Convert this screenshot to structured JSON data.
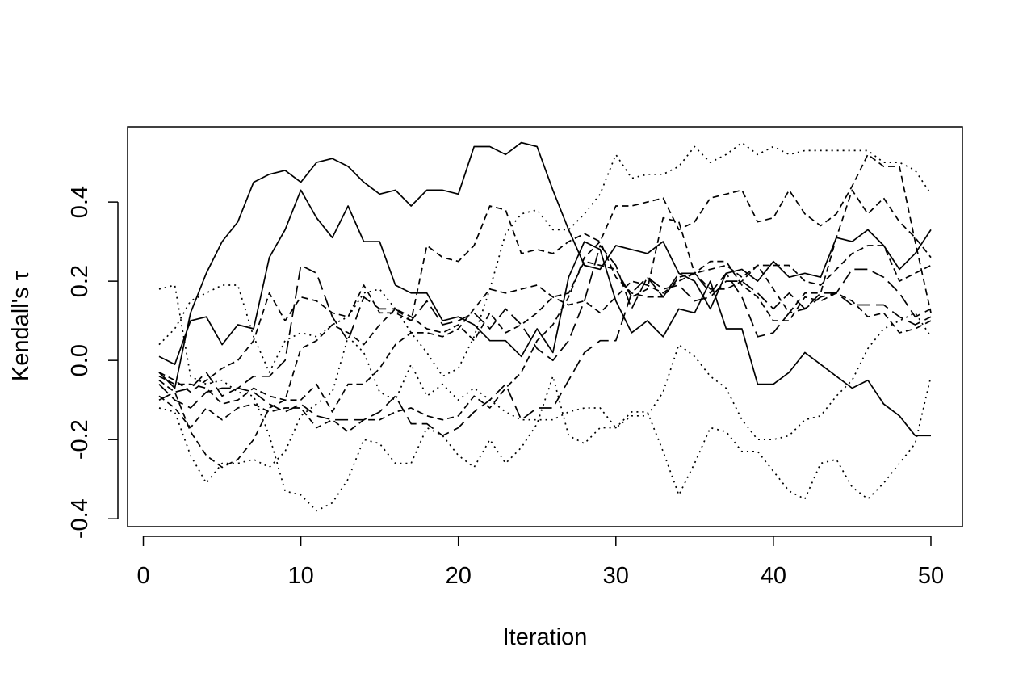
{
  "chart_data": {
    "type": "line",
    "title": "",
    "xlabel": "Iteration",
    "ylabel": "Kendall's τ",
    "xlim": [
      -1,
      52
    ],
    "ylim": [
      -0.42,
      0.59
    ],
    "xticks": [
      0,
      10,
      20,
      30,
      40,
      50
    ],
    "xtick_labels": [
      "0",
      "10",
      "20",
      "30",
      "40",
      "50"
    ],
    "yticks": [
      -0.4,
      -0.2,
      0.0,
      0.2,
      0.4
    ],
    "ytick_labels": [
      "-0.4",
      "-0.2",
      "0.0",
      "0.2",
      "0.4"
    ],
    "grid": false,
    "legend": "none",
    "line_color": "#000000",
    "x": [
      1,
      2,
      3,
      4,
      5,
      6,
      7,
      8,
      9,
      10,
      11,
      12,
      13,
      14,
      15,
      16,
      17,
      18,
      19,
      20,
      21,
      22,
      23,
      24,
      25,
      26,
      27,
      28,
      29,
      30,
      31,
      32,
      33,
      34,
      35,
      36,
      37,
      38,
      39,
      40,
      41,
      42,
      43,
      44,
      45,
      46,
      47,
      48,
      49,
      50
    ],
    "series": [
      {
        "dash": "solid",
        "values": [
          -0.03,
          -0.07,
          0.12,
          0.22,
          0.3,
          0.35,
          0.45,
          0.47,
          0.48,
          0.45,
          0.5,
          0.51,
          0.49,
          0.45,
          0.42,
          0.43,
          0.39,
          0.43,
          0.43,
          0.42,
          0.54,
          0.54,
          0.52,
          0.55,
          0.54,
          0.43,
          0.33,
          0.24,
          0.23,
          0.29,
          0.28,
          0.27,
          0.3,
          0.22,
          0.2,
          0.13,
          0.22,
          0.23,
          0.2,
          0.25,
          0.21,
          0.22,
          0.21,
          0.31,
          0.3,
          0.33,
          0.29,
          0.23,
          0.27,
          0.33
        ]
      },
      {
        "dash": "solid",
        "values": [
          0.01,
          -0.01,
          0.1,
          0.11,
          0.04,
          0.09,
          0.08,
          0.26,
          0.33,
          0.43,
          0.36,
          0.31,
          0.39,
          0.3,
          0.3,
          0.19,
          0.17,
          0.17,
          0.1,
          0.11,
          0.09,
          0.05,
          0.05,
          0.01,
          0.08,
          0.02,
          0.21,
          0.3,
          0.28,
          0.15,
          0.07,
          0.1,
          0.06,
          0.13,
          0.12,
          0.2,
          0.08,
          0.08,
          -0.06,
          -0.06,
          -0.03,
          0.02,
          -0.01,
          -0.04,
          -0.07,
          -0.05,
          -0.11,
          -0.14,
          -0.19,
          -0.19
        ]
      },
      {
        "dash": "dashed",
        "values": [
          -0.03,
          -0.05,
          -0.08,
          -0.05,
          -0.02,
          0.0,
          0.05,
          0.17,
          0.1,
          0.16,
          0.15,
          0.12,
          0.11,
          0.19,
          0.12,
          0.12,
          0.1,
          0.29,
          0.26,
          0.25,
          0.29,
          0.39,
          0.38,
          0.27,
          0.28,
          0.27,
          0.3,
          0.32,
          0.3,
          0.39,
          0.39,
          0.4,
          0.41,
          0.33,
          0.35,
          0.41,
          0.42,
          0.43,
          0.35,
          0.36,
          0.43,
          0.37,
          0.34,
          0.37,
          0.44,
          0.52,
          0.49,
          0.49,
          0.3,
          0.12
        ]
      },
      {
        "dash": "dashed",
        "values": [
          -0.05,
          -0.08,
          -0.18,
          -0.24,
          -0.27,
          -0.25,
          -0.2,
          -0.12,
          -0.1,
          0.03,
          0.05,
          0.09,
          0.07,
          0.04,
          0.09,
          0.13,
          0.11,
          0.08,
          0.07,
          0.09,
          0.05,
          0.12,
          0.07,
          0.09,
          0.12,
          0.16,
          0.17,
          0.25,
          0.24,
          0.23,
          0.16,
          0.18,
          0.36,
          0.35,
          0.22,
          0.18,
          0.18,
          0.2,
          0.24,
          0.18,
          0.12,
          0.17,
          0.17,
          0.31,
          0.43,
          0.37,
          0.41,
          0.35,
          0.31,
          0.26
        ]
      },
      {
        "dash": "dashed",
        "values": [
          -0.09,
          -0.12,
          -0.17,
          -0.12,
          -0.15,
          -0.12,
          -0.11,
          -0.13,
          -0.12,
          -0.12,
          -0.17,
          -0.15,
          -0.18,
          -0.15,
          -0.15,
          -0.13,
          -0.12,
          -0.14,
          -0.15,
          -0.14,
          -0.09,
          -0.12,
          -0.07,
          -0.03,
          0.05,
          0.09,
          0.16,
          0.26,
          0.3,
          0.21,
          0.17,
          0.16,
          0.16,
          0.21,
          0.22,
          0.25,
          0.25,
          0.19,
          0.16,
          0.1,
          0.1,
          0.16,
          0.15,
          0.17,
          0.15,
          0.11,
          0.12,
          0.07,
          0.08,
          0.1
        ]
      },
      {
        "dash": "dashed",
        "values": [
          -0.04,
          -0.06,
          -0.06,
          -0.07,
          -0.11,
          -0.1,
          -0.07,
          -0.09,
          -0.1,
          -0.1,
          -0.06,
          -0.13,
          -0.06,
          -0.06,
          -0.02,
          0.04,
          0.07,
          0.07,
          0.06,
          0.08,
          0.13,
          0.18,
          0.17,
          0.18,
          0.19,
          0.16,
          0.14,
          0.15,
          0.12,
          0.16,
          0.2,
          0.19,
          0.17,
          0.2,
          0.22,
          0.23,
          0.24,
          0.21,
          0.24,
          0.24,
          0.24,
          0.2,
          0.19,
          0.23,
          0.27,
          0.29,
          0.29,
          0.2,
          0.22,
          0.24
        ]
      },
      {
        "dash": "longdash",
        "values": [
          -0.1,
          -0.08,
          -0.07,
          -0.03,
          -0.09,
          -0.07,
          -0.04,
          -0.04,
          0.0,
          0.24,
          0.22,
          0.11,
          0.05,
          0.16,
          0.13,
          0.13,
          0.1,
          0.15,
          0.09,
          0.1,
          0.12,
          0.08,
          0.13,
          0.09,
          0.03,
          0.0,
          0.05,
          0.15,
          0.29,
          0.24,
          0.13,
          0.21,
          0.18,
          0.19,
          0.15,
          0.16,
          0.2,
          0.2,
          0.17,
          0.13,
          0.17,
          0.13,
          0.17,
          0.17,
          0.14,
          0.14,
          0.14,
          0.11,
          0.09,
          0.11
        ]
      },
      {
        "dash": "longdash",
        "values": [
          -0.06,
          -0.1,
          -0.12,
          -0.08,
          -0.07,
          -0.07,
          -0.08,
          -0.11,
          -0.13,
          -0.11,
          -0.14,
          -0.15,
          -0.15,
          -0.15,
          -0.13,
          -0.09,
          -0.16,
          -0.16,
          -0.19,
          -0.17,
          -0.13,
          -0.1,
          -0.06,
          -0.15,
          -0.12,
          -0.12,
          -0.05,
          0.02,
          0.05,
          0.05,
          0.17,
          0.21,
          0.16,
          0.22,
          0.22,
          0.17,
          0.22,
          0.16,
          0.06,
          0.07,
          0.12,
          0.13,
          0.16,
          0.17,
          0.23,
          0.23,
          0.21,
          0.17,
          0.11,
          0.13
        ]
      },
      {
        "dash": "dotted",
        "values": [
          0.04,
          0.08,
          0.15,
          0.17,
          0.19,
          0.19,
          0.06,
          -0.03,
          0.05,
          0.07,
          0.06,
          0.09,
          0.11,
          0.17,
          0.18,
          0.13,
          0.07,
          0.02,
          -0.04,
          -0.02,
          0.06,
          0.18,
          0.32,
          0.37,
          0.38,
          0.33,
          0.33,
          0.37,
          0.42,
          0.52,
          0.46,
          0.47,
          0.47,
          0.49,
          0.54,
          0.5,
          0.52,
          0.55,
          0.52,
          0.54,
          0.52,
          0.53,
          0.53,
          0.53,
          0.53,
          0.53,
          0.5,
          0.5,
          0.48,
          0.42
        ]
      },
      {
        "dash": "dotted",
        "values": [
          0.18,
          0.19,
          -0.04,
          -0.06,
          -0.05,
          -0.08,
          -0.09,
          -0.19,
          -0.33,
          -0.34,
          -0.38,
          -0.36,
          -0.3,
          -0.2,
          -0.21,
          -0.26,
          -0.26,
          -0.17,
          -0.19,
          -0.24,
          -0.27,
          -0.2,
          -0.26,
          -0.22,
          -0.16,
          -0.04,
          -0.19,
          -0.21,
          -0.17,
          -0.17,
          -0.13,
          -0.13,
          -0.23,
          -0.34,
          -0.26,
          -0.17,
          -0.18,
          -0.23,
          -0.23,
          -0.28,
          -0.33,
          -0.35,
          -0.26,
          -0.25,
          -0.32,
          -0.35,
          -0.31,
          -0.26,
          -0.21,
          -0.04
        ]
      },
      {
        "dash": "dotted",
        "values": [
          -0.12,
          -0.13,
          -0.24,
          -0.31,
          -0.26,
          -0.26,
          -0.25,
          -0.27,
          -0.23,
          -0.14,
          -0.11,
          -0.08,
          0.06,
          0.02,
          -0.08,
          -0.1,
          -0.01,
          -0.09,
          -0.06,
          -0.1,
          -0.07,
          -0.1,
          -0.13,
          -0.15,
          -0.15,
          -0.15,
          -0.13,
          -0.12,
          -0.12,
          -0.17,
          -0.14,
          -0.14,
          -0.08,
          0.04,
          0.01,
          -0.04,
          -0.07,
          -0.15,
          -0.2,
          -0.2,
          -0.19,
          -0.15,
          -0.14,
          -0.09,
          -0.05,
          0.03,
          0.08,
          0.1,
          0.12,
          0.06
        ]
      }
    ]
  }
}
